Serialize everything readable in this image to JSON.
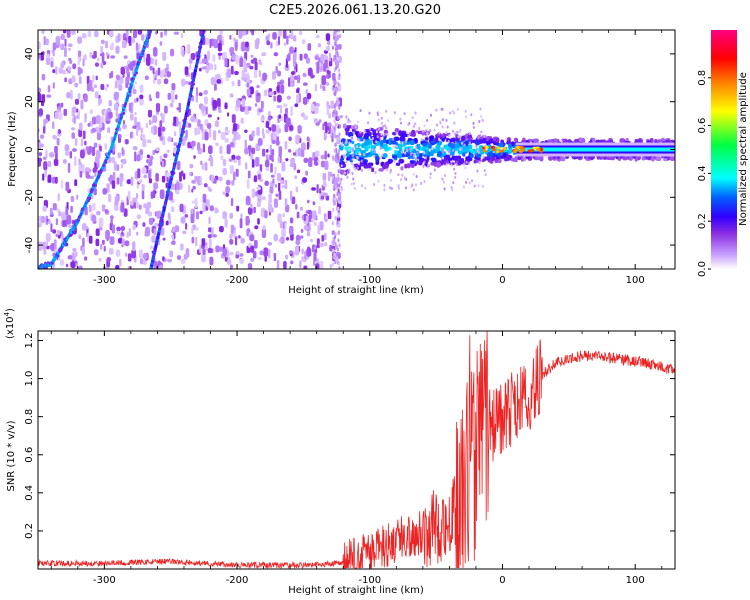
{
  "figure_title": "C2E5.2026.061.13.20.G20",
  "chart_data": [
    {
      "type": "heatmap",
      "title": "C2E5.2026.061.13.20.G20",
      "xlabel": "Height of straight line (km)",
      "ylabel": "Frequency (Hz)",
      "xlim": [
        -350,
        130
      ],
      "ylim": [
        -50,
        50
      ],
      "xticks": [
        -300,
        -200,
        -100,
        0,
        100
      ],
      "xtick_labels": [
        "-300",
        "-200",
        "-100",
        "0",
        "100"
      ],
      "yticks": [
        -40,
        -20,
        0,
        20,
        40
      ],
      "ytick_labels": [
        "-40",
        "-20",
        "0",
        "20",
        "40"
      ],
      "colorbar": {
        "label": "Normalized spectral amplitude",
        "range": [
          0,
          1
        ],
        "ticks": [
          0.0,
          0.2,
          0.4,
          0.6,
          0.8
        ],
        "tick_labels": [
          "0.0",
          "0.2",
          "0.4",
          "0.6",
          "0.8"
        ],
        "colormap": [
          "#ffffff",
          "#c8a0ff",
          "#8a2be2",
          "#3000ff",
          "#00a0ff",
          "#00ffff",
          "#00ff40",
          "#ffff00",
          "#ff8000",
          "#ff0000",
          "#ff0080"
        ]
      },
      "features": [
        {
          "name": "broadband noise",
          "x_range": [
            -350,
            -122
          ],
          "freq_range": [
            -50,
            50
          ],
          "level": 0.15
        },
        {
          "name": "dispersive chirp A",
          "points": [
            [
              -355,
              -50
            ],
            [
              -340,
              -48
            ],
            [
              -320,
              -30
            ],
            [
              -295,
              0
            ],
            [
              -275,
              35
            ],
            [
              -265,
              50
            ]
          ],
          "level": 0.35
        },
        {
          "name": "dispersive chirp B",
          "points": [
            [
              -265,
              -50
            ],
            [
              -255,
              -25
            ],
            [
              -240,
              10
            ],
            [
              -225,
              50
            ]
          ],
          "level": 0.3
        },
        {
          "name": "signal band",
          "x_range": [
            -122,
            130
          ],
          "center_freq": 0,
          "half_width_hz": [
            10,
            4
          ],
          "level": 0.5
        },
        {
          "name": "peak cluster",
          "x_range": [
            -20,
            30
          ],
          "center_freq": 0,
          "level": 0.9
        }
      ]
    },
    {
      "type": "line",
      "xlabel": "Height of straight line (km)",
      "ylabel": "SNR (10 * v/v)",
      "y_scale_note": "(x10^4)",
      "y_scale_base": "(x10",
      "y_scale_exp": "4",
      "y_scale_close": ")",
      "xlim": [
        -350,
        130
      ],
      "ylim": [
        0,
        1.25
      ],
      "xticks": [
        -300,
        -200,
        -100,
        0,
        100
      ],
      "xtick_labels": [
        "-300",
        "-200",
        "-100",
        "0",
        "100"
      ],
      "yticks": [
        0.2,
        0.4,
        0.6,
        0.8,
        1.0,
        1.2
      ],
      "ytick_labels": [
        "0.2",
        "0.4",
        "0.6",
        "0.8",
        "1.0",
        "1.2"
      ],
      "series": [
        {
          "name": "SNR",
          "color": "#ee2222",
          "x": [
            -350,
            -300,
            -250,
            -200,
            -150,
            -120,
            -100,
            -80,
            -60,
            -40,
            -30,
            -25,
            -20,
            -10,
            0,
            10,
            20,
            30,
            40,
            50,
            60,
            70,
            80,
            90,
            100,
            110,
            120,
            130
          ],
          "y": [
            0.03,
            0.03,
            0.04,
            0.02,
            0.02,
            0.03,
            0.08,
            0.15,
            0.2,
            0.25,
            0.35,
            0.5,
            0.6,
            0.75,
            0.8,
            0.85,
            0.92,
            1.02,
            1.08,
            1.1,
            1.12,
            1.12,
            1.11,
            1.1,
            1.09,
            1.08,
            1.06,
            1.04
          ],
          "noise_envelope": [
            {
              "x": [
                -350,
                -120
              ],
              "amp": 0.015
            },
            {
              "x": [
                -120,
                -60
              ],
              "amp": 0.12
            },
            {
              "x": [
                -60,
                -35
              ],
              "amp": 0.2
            },
            {
              "x": [
                -35,
                -10
              ],
              "amp": 0.55
            },
            {
              "x": [
                -10,
                30
              ],
              "amp": 0.2
            },
            {
              "x": [
                30,
                130
              ],
              "amp": 0.03
            }
          ]
        }
      ]
    }
  ]
}
